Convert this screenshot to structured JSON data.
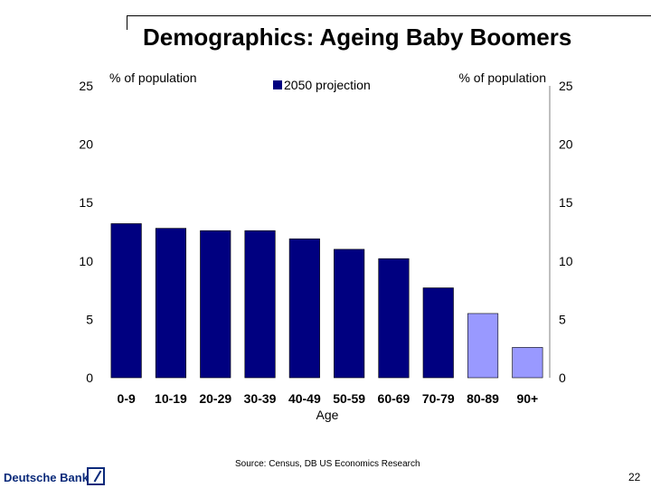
{
  "slide": {
    "title": "Demographics:  Ageing Baby Boomers",
    "source": "Source: Census, DB US Economics Research",
    "brand": "Deutsche Bank",
    "page_number": "22"
  },
  "colors": {
    "bar_primary": "#000080",
    "bar_highlight": "#9999FF",
    "axis": "#808080"
  },
  "chart_data": {
    "type": "bar",
    "title": "",
    "xlabel": "Age",
    "ylabel_left": "% of population",
    "ylabel_right": "% of population",
    "legend": [
      "2050 projection"
    ],
    "legend_position": "top",
    "categories": [
      "0-9",
      "10-19",
      "20-29",
      "30-39",
      "40-49",
      "50-59",
      "60-69",
      "70-79",
      "80-89",
      "90+"
    ],
    "series": [
      {
        "name": "2050 projection",
        "values": [
          13.2,
          12.8,
          12.6,
          12.6,
          11.9,
          11.0,
          10.2,
          7.7,
          5.5,
          2.6
        ]
      }
    ],
    "highlighted_categories": [
      "80-89",
      "90+"
    ],
    "ylim": [
      0,
      25
    ],
    "yticks": [
      0,
      5,
      10,
      15,
      20,
      25
    ],
    "grid": false
  }
}
